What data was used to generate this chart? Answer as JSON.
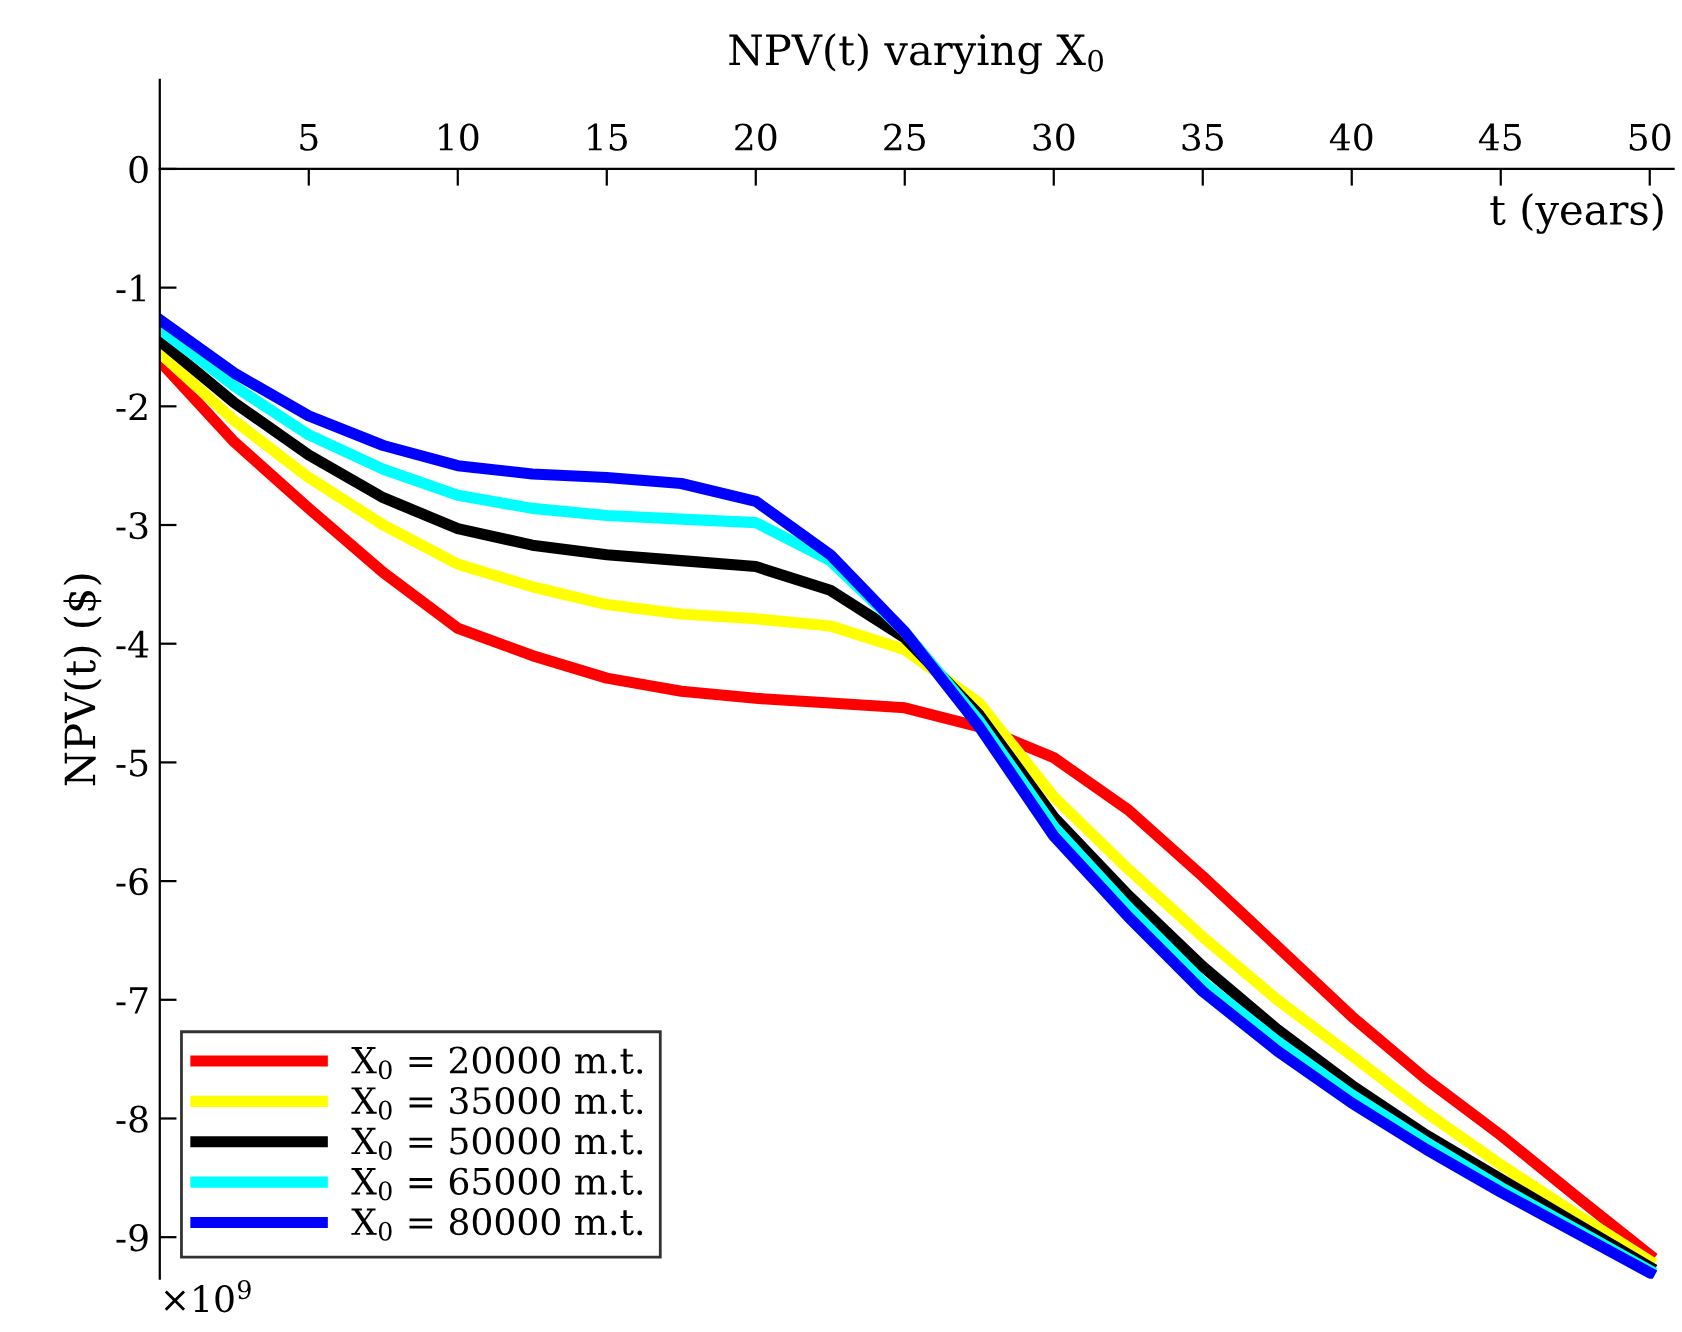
{
  "chart_data": {
    "type": "line",
    "title": "NPV(t) varying X$_{0}$",
    "xlabel": "t (years)",
    "ylabel": "NPV(t) ($)",
    "annotations": [
      "×10$^{9}$"
    ],
    "x": [
      0,
      2.5,
      5,
      7.5,
      10,
      12.5,
      15,
      17.5,
      20,
      22.5,
      25,
      27.5,
      30,
      32.5,
      35,
      37.5,
      40,
      42.5,
      45,
      47.5,
      50
    ],
    "series": [
      {
        "name": "X$_{0}$ = 20000 m.t.",
        "color": "#ff0000",
        "values": [
          -1.62,
          -2.3,
          -2.86,
          -3.4,
          -3.87,
          -4.1,
          -4.29,
          -4.4,
          -4.46,
          -4.5,
          -4.54,
          -4.7,
          -4.96,
          -5.4,
          -5.96,
          -6.55,
          -7.14,
          -7.67,
          -8.14,
          -8.65,
          -9.15
        ]
      },
      {
        "name": "X$_{0}$ = 35000 m.t.",
        "color": "#ffff00",
        "values": [
          -1.55,
          -2.12,
          -2.6,
          -3.0,
          -3.33,
          -3.52,
          -3.67,
          -3.75,
          -3.79,
          -3.85,
          -4.05,
          -4.5,
          -5.29,
          -5.9,
          -6.47,
          -7.0,
          -7.47,
          -7.95,
          -8.39,
          -8.8,
          -9.2
        ]
      },
      {
        "name": "X$_{0}$ = 50000 m.t.",
        "color": "#000000",
        "values": [
          -1.45,
          -1.97,
          -2.41,
          -2.77,
          -3.03,
          -3.17,
          -3.25,
          -3.3,
          -3.35,
          -3.55,
          -3.95,
          -4.6,
          -5.46,
          -6.12,
          -6.72,
          -7.25,
          -7.72,
          -8.14,
          -8.51,
          -8.88,
          -9.25
        ]
      },
      {
        "name": "X$_{0}$ = 65000 m.t.",
        "color": "#00ffff",
        "values": [
          -1.35,
          -1.83,
          -2.24,
          -2.53,
          -2.75,
          -2.86,
          -2.92,
          -2.95,
          -2.98,
          -3.3,
          -3.9,
          -4.65,
          -5.54,
          -6.22,
          -6.85,
          -7.35,
          -7.8,
          -8.2,
          -8.58,
          -8.93,
          -9.28
        ]
      },
      {
        "name": "X$_{0}$ = 80000 m.t.",
        "color": "#0000ff",
        "values": [
          -1.27,
          -1.72,
          -2.08,
          -2.33,
          -2.5,
          -2.57,
          -2.6,
          -2.65,
          -2.8,
          -3.25,
          -3.9,
          -4.7,
          -5.62,
          -6.3,
          -6.93,
          -7.43,
          -7.87,
          -8.26,
          -8.62,
          -8.96,
          -9.3
        ]
      }
    ],
    "xlim": [
      0,
      50.8
    ],
    "ylim": [
      -9.35,
      0.75
    ],
    "xticks": [
      5,
      10,
      15,
      20,
      25,
      30,
      35,
      40,
      45,
      50
    ],
    "yticks": [
      -9,
      -8,
      -7,
      -6,
      -5,
      -4,
      -3,
      -2,
      -1,
      0
    ],
    "grid": false,
    "legend": "bottom left",
    "marker": "none",
    "line_style": "solid"
  }
}
